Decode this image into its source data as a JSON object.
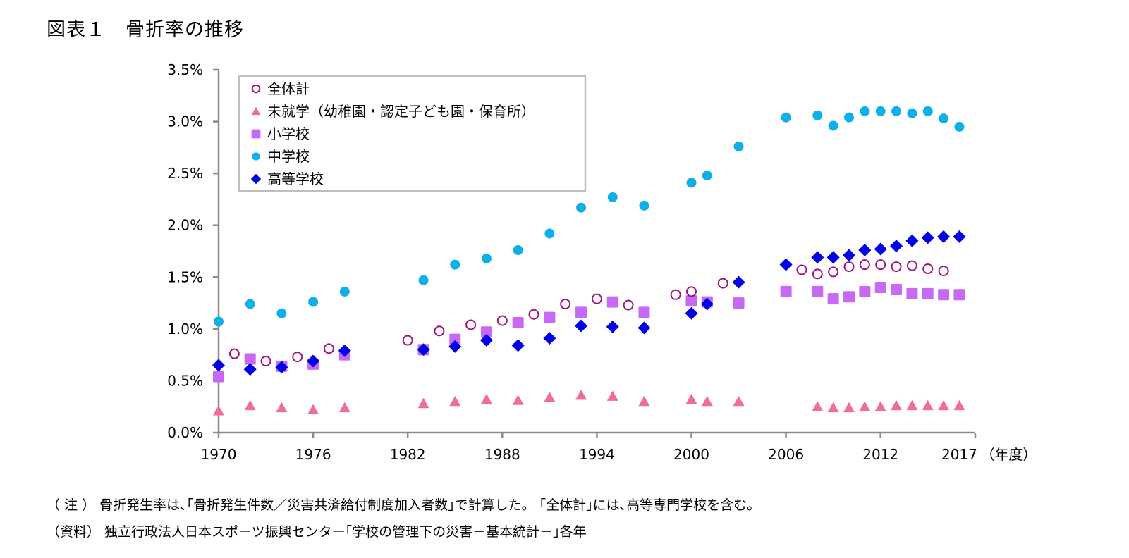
{
  "title": "図表１　骨折率の推移",
  "notes": {
    "note": "（ 注 ） 骨折発生率は､｢骨折発生件数／災害共済給付制度加入者数｣で計算した。 ｢全体計｣には､高等専門学校を含む。",
    "source": "（資料） 独立行政法人日本スポーツ振興センター｢学校の管理下の災害－基本統計－｣各年"
  },
  "chart_data": {
    "type": "scatter",
    "title": "骨折率の推移",
    "xlabel": "（年度）",
    "ylabel": "",
    "xlim": [
      1970,
      2017
    ],
    "ylim": [
      0,
      3.5
    ],
    "x_ticks": [
      1970,
      1976,
      1982,
      1988,
      1994,
      2000,
      2006,
      2012,
      2017
    ],
    "x_tick_labels": [
      "1970",
      "1976",
      "1982",
      "1988",
      "1994",
      "2000",
      "2006",
      "2012",
      "2017"
    ],
    "y_ticks": [
      0,
      0.5,
      1.0,
      1.5,
      2.0,
      2.5,
      3.0,
      3.5
    ],
    "y_tick_labels": [
      "0.0%",
      "0.5%",
      "1.0%",
      "1.5%",
      "2.0%",
      "2.5%",
      "3.0%",
      "3.5%"
    ],
    "grid": false,
    "legend_position": "top-left",
    "series": [
      {
        "name": "全体計",
        "marker": "circle-open",
        "color": "#a0127f",
        "points": [
          [
            1971,
            0.76
          ],
          [
            1973,
            0.69
          ],
          [
            1975,
            0.73
          ],
          [
            1977,
            0.81
          ],
          [
            1982,
            0.89
          ],
          [
            1984,
            0.98
          ],
          [
            1986,
            1.04
          ],
          [
            1988,
            1.08
          ],
          [
            1990,
            1.14
          ],
          [
            1992,
            1.24
          ],
          [
            1994,
            1.29
          ],
          [
            1996,
            1.23
          ],
          [
            1999,
            1.33
          ],
          [
            2000,
            1.36
          ],
          [
            2002,
            1.44
          ],
          [
            2007,
            1.57
          ],
          [
            2008,
            1.53
          ],
          [
            2009,
            1.55
          ],
          [
            2010,
            1.6
          ],
          [
            2011,
            1.62
          ],
          [
            2012,
            1.62
          ],
          [
            2013,
            1.6
          ],
          [
            2014,
            1.61
          ],
          [
            2015,
            1.58
          ],
          [
            2016,
            1.56
          ]
        ]
      },
      {
        "name": "未就学（幼稚園・認定子ども園・保育所）",
        "marker": "triangle",
        "color": "#f06c9b",
        "points": [
          [
            1970,
            0.21
          ],
          [
            1972,
            0.26
          ],
          [
            1974,
            0.24
          ],
          [
            1976,
            0.22
          ],
          [
            1978,
            0.24
          ],
          [
            1983,
            0.28
          ],
          [
            1985,
            0.3
          ],
          [
            1987,
            0.32
          ],
          [
            1989,
            0.31
          ],
          [
            1991,
            0.34
          ],
          [
            1993,
            0.36
          ],
          [
            1995,
            0.35
          ],
          [
            1997,
            0.3
          ],
          [
            2000,
            0.32
          ],
          [
            2001,
            0.3
          ],
          [
            2003,
            0.3
          ],
          [
            2008,
            0.25
          ],
          [
            2009,
            0.24
          ],
          [
            2010,
            0.24
          ],
          [
            2011,
            0.25
          ],
          [
            2012,
            0.25
          ],
          [
            2013,
            0.26
          ],
          [
            2014,
            0.26
          ],
          [
            2015,
            0.26
          ],
          [
            2016,
            0.26
          ],
          [
            2017,
            0.26
          ]
        ]
      },
      {
        "name": "小学校",
        "marker": "square",
        "color": "#c869f5",
        "points": [
          [
            1970,
            0.54
          ],
          [
            1972,
            0.71
          ],
          [
            1974,
            0.64
          ],
          [
            1976,
            0.66
          ],
          [
            1978,
            0.75
          ],
          [
            1983,
            0.8
          ],
          [
            1985,
            0.9
          ],
          [
            1987,
            0.97
          ],
          [
            1989,
            1.06
          ],
          [
            1991,
            1.11
          ],
          [
            1993,
            1.16
          ],
          [
            1995,
            1.26
          ],
          [
            1997,
            1.16
          ],
          [
            2000,
            1.27
          ],
          [
            2001,
            1.26
          ],
          [
            2003,
            1.25
          ],
          [
            2006,
            1.36
          ],
          [
            2008,
            1.36
          ],
          [
            2009,
            1.29
          ],
          [
            2010,
            1.31
          ],
          [
            2011,
            1.36
          ],
          [
            2012,
            1.4
          ],
          [
            2013,
            1.38
          ],
          [
            2014,
            1.34
          ],
          [
            2015,
            1.34
          ],
          [
            2016,
            1.33
          ],
          [
            2017,
            1.33
          ]
        ]
      },
      {
        "name": "中学校",
        "marker": "circle",
        "color": "#0fb0e8",
        "points": [
          [
            1970,
            1.07
          ],
          [
            1972,
            1.24
          ],
          [
            1974,
            1.15
          ],
          [
            1976,
            1.26
          ],
          [
            1978,
            1.36
          ],
          [
            1983,
            1.47
          ],
          [
            1985,
            1.62
          ],
          [
            1987,
            1.68
          ],
          [
            1989,
            1.76
          ],
          [
            1991,
            1.92
          ],
          [
            1993,
            2.17
          ],
          [
            1995,
            2.27
          ],
          [
            1997,
            2.19
          ],
          [
            2000,
            2.41
          ],
          [
            2001,
            2.48
          ],
          [
            2003,
            2.76
          ],
          [
            2006,
            3.04
          ],
          [
            2008,
            3.06
          ],
          [
            2009,
            2.96
          ],
          [
            2010,
            3.04
          ],
          [
            2011,
            3.1
          ],
          [
            2012,
            3.1
          ],
          [
            2013,
            3.1
          ],
          [
            2014,
            3.08
          ],
          [
            2015,
            3.1
          ],
          [
            2016,
            3.03
          ],
          [
            2017,
            2.95
          ]
        ]
      },
      {
        "name": "高等学校",
        "marker": "diamond",
        "color": "#0000e6",
        "points": [
          [
            1970,
            0.65
          ],
          [
            1972,
            0.61
          ],
          [
            1974,
            0.63
          ],
          [
            1976,
            0.69
          ],
          [
            1978,
            0.79
          ],
          [
            1983,
            0.8
          ],
          [
            1985,
            0.83
          ],
          [
            1987,
            0.89
          ],
          [
            1989,
            0.84
          ],
          [
            1991,
            0.91
          ],
          [
            1993,
            1.03
          ],
          [
            1995,
            1.02
          ],
          [
            1997,
            1.01
          ],
          [
            2000,
            1.15
          ],
          [
            2001,
            1.24
          ],
          [
            2003,
            1.45
          ],
          [
            2006,
            1.62
          ],
          [
            2008,
            1.69
          ],
          [
            2009,
            1.69
          ],
          [
            2010,
            1.71
          ],
          [
            2011,
            1.76
          ],
          [
            2012,
            1.77
          ],
          [
            2013,
            1.8
          ],
          [
            2014,
            1.85
          ],
          [
            2015,
            1.88
          ],
          [
            2016,
            1.89
          ],
          [
            2017,
            1.89
          ]
        ]
      }
    ]
  }
}
